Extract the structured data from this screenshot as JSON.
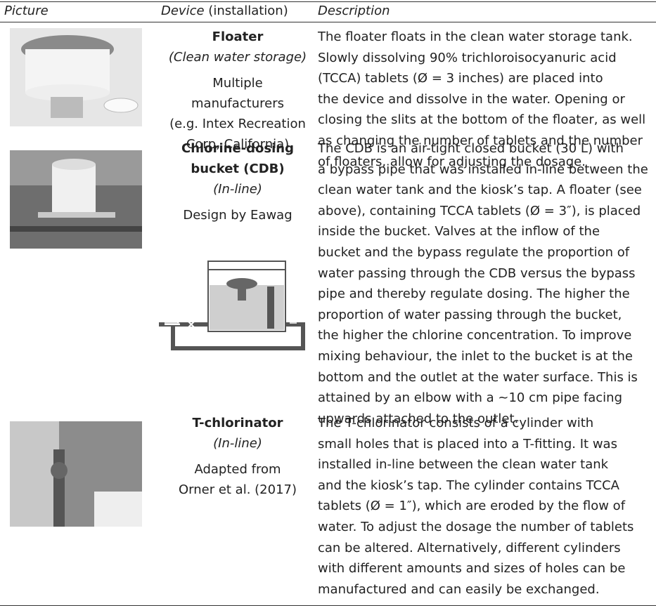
{
  "header": {
    "picture": "Picture",
    "device": "Device",
    "device_note": "(installation)",
    "description": "Description"
  },
  "rows": [
    {
      "name": [
        "Floater"
      ],
      "installation": "(Clean water storage)",
      "source": [
        "Multiple",
        "manufacturers",
        "(e.g. Intex Recreation",
        "Corp, California)"
      ],
      "description": [
        "The floater floats in the clean water storage tank.",
        "Slowly dissolving 90% trichloroisocyanuric acid",
        "(TCCA) tablets (Ø = 3 inches) are placed into",
        "the device and dissolve in the water. Opening or",
        "closing the slits at the bottom of the floater, as well",
        "as changing the number of tablets and the number",
        "of floaters, allow for adjusting the dosage."
      ]
    },
    {
      "name": [
        "Chlorine-dosing",
        "bucket (CDB)"
      ],
      "installation": "(In-line)",
      "source": [
        "Design by Eawag"
      ],
      "description": [
        "The CDB is an air-tight closed bucket (30 L) with",
        "a bypass pipe that was installed in-line between the",
        "clean water tank and the kiosk’s tap. A floater (see",
        "above), containing TCCA tablets (Ø = 3″), is placed",
        "inside the bucket. Valves at the inflow of the",
        "bucket and the bypass regulate the proportion of",
        "water passing through the CDB versus the bypass",
        "pipe and thereby regulate dosing. The higher the",
        "proportion of water passing through the bucket,",
        "the higher the chlorine concentration. To improve",
        "mixing behaviour, the inlet to the bucket is at the",
        "bottom and the outlet at the water surface. This is",
        "attained by an elbow with a ~10 cm pipe facing",
        "upwards attached to the outlet."
      ]
    },
    {
      "name": [
        "T-chlorinator"
      ],
      "installation": "(In-line)",
      "source": [
        "Adapted from",
        "Orner et al. (2017)"
      ],
      "description": [
        "The T-chlorinator consists of a cylinder with",
        "small holes that is placed into a T-fitting. It was",
        "installed in-line between the clean water tank",
        "and the kiosk’s tap. The cylinder contains TCCA",
        "tablets (Ø = 1″), which are eroded by the flow of",
        "water. To adjust the dosage the number of tablets",
        "can be altered. Alternatively, different cylinders",
        "with different amounts and sizes of holes can be",
        "manufactured and can easily be exchanged."
      ]
    }
  ]
}
